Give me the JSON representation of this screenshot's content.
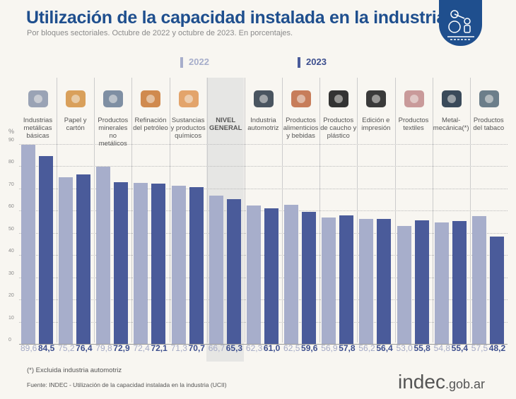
{
  "header": {
    "title": "Utilización de la capacidad instalada en la industria",
    "subtitle": "Por bloques sectoriales. Octubre de 2022 y octubre de 2023. En porcentajes."
  },
  "colors": {
    "y2022": "#a7aecb",
    "y2023": "#4a5b9a",
    "title": "#1f4f8e",
    "highlight": "#e6e6e4"
  },
  "chart_data": {
    "type": "bar",
    "title": "Utilización de la capacidad instalada en la industria",
    "ylabel": "%",
    "ylim": [
      0,
      90
    ],
    "yticks": [
      "0",
      "10",
      "20",
      "30",
      "40",
      "50",
      "60",
      "70",
      "80",
      "90"
    ],
    "grid": true,
    "legend_position": "top",
    "categories": [
      "Industrias metálicas básicas",
      "Papel y cartón",
      "Productos minerales no metálicos",
      "Refinación del petróleo",
      "Sustancias y productos químicos",
      "NIVEL GENERAL",
      "Industria automotriz",
      "Productos alimenticios y bebidas",
      "Productos de caucho y plástico",
      "Edición e impresión",
      "Productos textiles",
      "Metal-mecánica(*)",
      "Productos del tabaco"
    ],
    "series": [
      {
        "name": "2022",
        "values": [
          89.6,
          75.2,
          79.8,
          72.4,
          71.3,
          66.7,
          62.3,
          62.5,
          56.9,
          56.2,
          53.0,
          54.8,
          57.5
        ],
        "labels": [
          "89,6",
          "75,2",
          "79,8",
          "72,4",
          "71,3",
          "66,7",
          "62,3",
          "62,5",
          "56,9",
          "56,2",
          "53,0",
          "54,8",
          "57,5"
        ]
      },
      {
        "name": "2023",
        "values": [
          84.5,
          76.4,
          72.9,
          72.1,
          70.7,
          65.3,
          61.0,
          59.6,
          57.8,
          56.4,
          55.8,
          55.4,
          48.2
        ],
        "labels": [
          "84,5",
          "76,4",
          "72,9",
          "72,1",
          "70,7",
          "65,3",
          "61,0",
          "59,6",
          "57,8",
          "56,4",
          "55,8",
          "55,4",
          "48,2"
        ]
      }
    ],
    "icons": [
      "steel-furnace-icon",
      "paper-box-icon",
      "cement-mixer-icon",
      "oil-refinery-icon",
      "chemical-flask-icon",
      "",
      "car-icon",
      "bottle-bread-icon",
      "tires-icon",
      "paper-roll-icon",
      "textile-icon",
      "gears-icon",
      "pipe-icon"
    ]
  },
  "footer": {
    "note": "(*) Excluida industria automotriz",
    "source": "Fuente: INDEC - Utilización de la capacidad instalada en la industria (UCII)",
    "logo_main": "indec",
    "logo_suffix": ".gob.ar"
  }
}
